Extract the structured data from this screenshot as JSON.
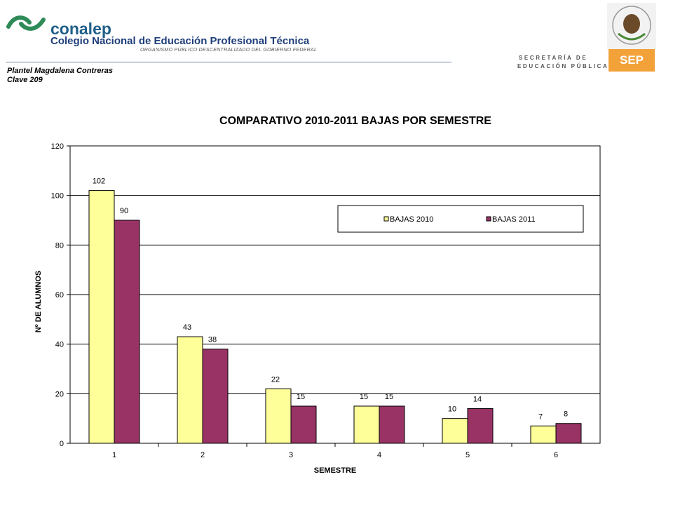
{
  "header": {
    "org_short": "conalep",
    "org_full": "Colegio Nacional de Educación Profesional Técnica",
    "org_sub": "ORGANISMO PÚBLICO DESCENTRALIZADO DEL GOBIERNO FEDERAL",
    "campus": "Plantel  Magdalena Contreras",
    "campus_id": "Clave 209",
    "ministry_line1": "SECRETARÍA DE",
    "ministry_line2": "EDUCACIÓN PÚBLICA",
    "sep_badge": "SEP",
    "colors": {
      "conalep_green": "#2e8b57",
      "conalep_blue": "#1f5f8a",
      "sep_orange": "#f3a23a"
    }
  },
  "chart_data": {
    "type": "bar",
    "title": "COMPARATIVO 2010-2011 BAJAS POR SEMESTRE",
    "xlabel": "SEMESTRE",
    "ylabel": "Nº DE ALUMNOS",
    "categories": [
      "1",
      "2",
      "3",
      "4",
      "5",
      "6"
    ],
    "ylim": [
      0,
      120
    ],
    "yticks": [
      0,
      20,
      40,
      60,
      80,
      100,
      120
    ],
    "grid": true,
    "legend": "top-right",
    "series": [
      {
        "name": "BAJAS 2010",
        "values": [
          102,
          43,
          22,
          15,
          10,
          7
        ],
        "color": "#ffff99"
      },
      {
        "name": "BAJAS 2011",
        "values": [
          90,
          38,
          15,
          15,
          14,
          8
        ],
        "color": "#993366"
      }
    ]
  }
}
